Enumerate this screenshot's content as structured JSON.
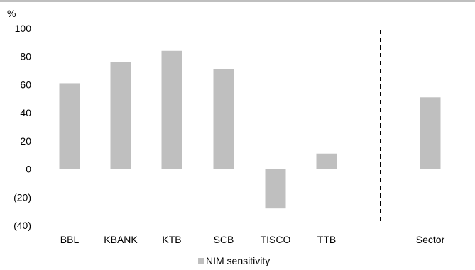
{
  "chart_data": {
    "type": "bar",
    "title": "",
    "xlabel": "",
    "ylabel": "",
    "y_unit": "%",
    "ylim": [
      -40,
      100
    ],
    "y_ticks": [
      100,
      80,
      60,
      40,
      20,
      0,
      -20,
      -40
    ],
    "y_tick_labels": [
      "100",
      "80",
      "60",
      "40",
      "20",
      "0",
      "(20)",
      "(40)"
    ],
    "categories": [
      "BBL",
      "KBANK",
      "KTB",
      "SCB",
      "TISCO",
      "TTB",
      "Sector"
    ],
    "series": [
      {
        "name": "NIM sensitivity",
        "values": [
          61,
          76,
          84,
          71,
          -28,
          11,
          51
        ],
        "color": "#bfbfbf"
      }
    ],
    "separator": "dashed vertical line between TTB and Sector",
    "grid": false,
    "legend_position": "bottom"
  }
}
